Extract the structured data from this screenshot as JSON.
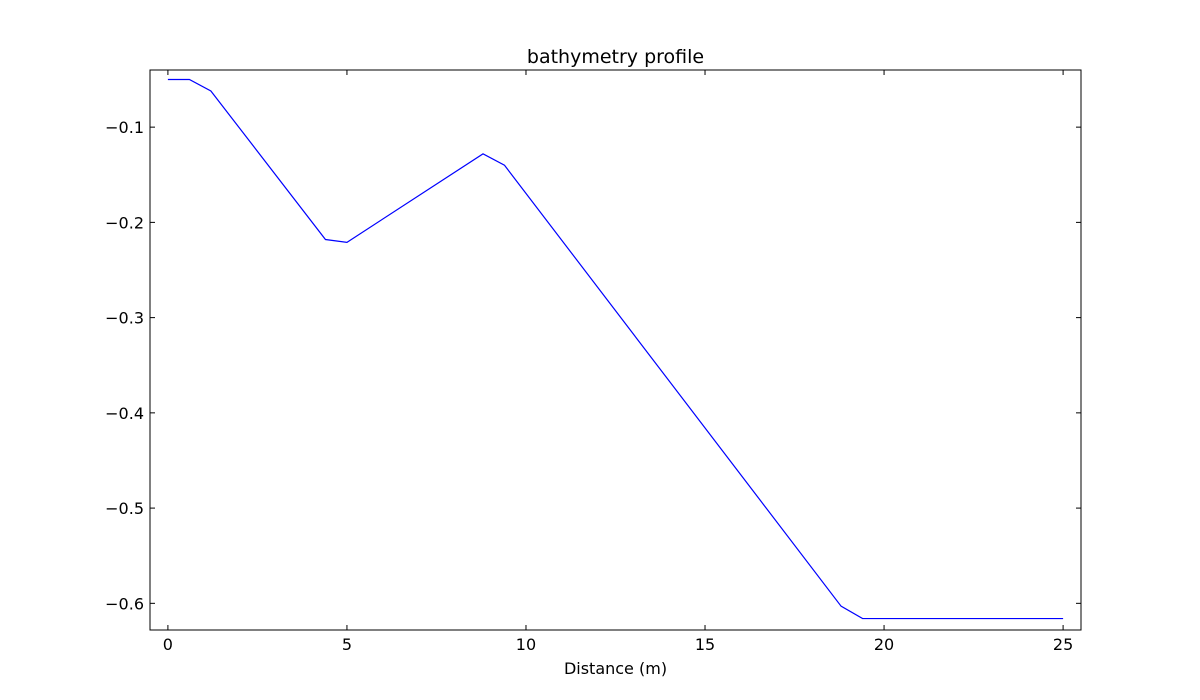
{
  "chart_data": {
    "type": "line",
    "title": "bathymetry profile",
    "xlabel": "Distance (m)",
    "ylabel": "",
    "xlim": [
      -0.5,
      25.5
    ],
    "ylim": [
      -0.628,
      -0.04
    ],
    "xticks": [
      0,
      5,
      10,
      15,
      20,
      25
    ],
    "xtick_labels": [
      "0",
      "5",
      "10",
      "15",
      "20",
      "25"
    ],
    "yticks": [
      -0.1,
      -0.2,
      -0.3,
      -0.4,
      -0.5,
      -0.6
    ],
    "ytick_labels": [
      "−0.1",
      "−0.2",
      "−0.3",
      "−0.4",
      "−0.5",
      "−0.6"
    ],
    "grid": false,
    "series": [
      {
        "color": "#0000ff",
        "x": [
          0,
          0.6,
          1.2,
          4.4,
          5.0,
          8.8,
          9.4,
          18.8,
          19.4,
          25.0
        ],
        "y": [
          -0.05,
          -0.05,
          -0.062,
          -0.218,
          -0.221,
          -0.128,
          -0.14,
          -0.603,
          -0.616,
          -0.616
        ]
      }
    ]
  }
}
